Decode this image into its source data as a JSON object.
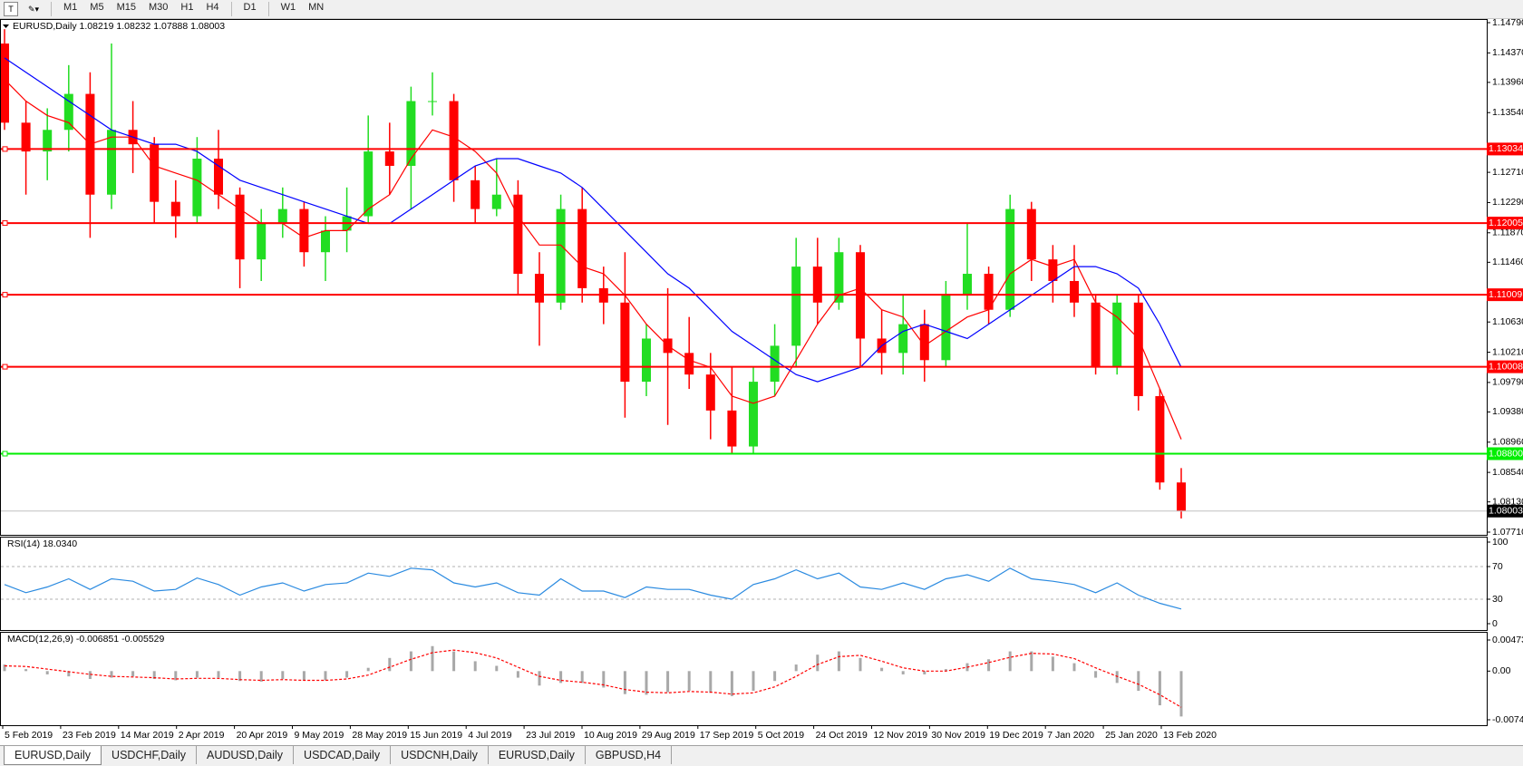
{
  "toolbar": {
    "timeframes": [
      "M1",
      "M5",
      "M15",
      "M30",
      "H1",
      "H4",
      "D1",
      "W1",
      "MN"
    ]
  },
  "chart_data": [
    {
      "type": "candlestick",
      "title": "EURUSD,Daily  1.08219 1.08232 1.07888 1.08003",
      "up_color": "#22dd22",
      "down_color": "#ff0000",
      "open": [
        1.145,
        1.134,
        1.13,
        1.133,
        1.138,
        1.124,
        1.133,
        1.131,
        1.123,
        1.121,
        1.129,
        1.124,
        1.115,
        1.12,
        1.122,
        1.116,
        1.119,
        1.121,
        1.13,
        1.128,
        1.137,
        1.137,
        1.126,
        1.122,
        1.124,
        1.113,
        1.109,
        1.122,
        1.111,
        1.109,
        1.098,
        1.104,
        1.102,
        1.099,
        1.094,
        1.089,
        1.098,
        1.103,
        1.114,
        1.109,
        1.116,
        1.104,
        1.102,
        1.106,
        1.101,
        1.11,
        1.113,
        1.108,
        1.122,
        1.115,
        1.112,
        1.109,
        1.1,
        1.109,
        1.096,
        1.084
      ],
      "high": [
        1.147,
        1.137,
        1.136,
        1.142,
        1.141,
        1.145,
        1.137,
        1.132,
        1.126,
        1.132,
        1.133,
        1.125,
        1.122,
        1.125,
        1.123,
        1.121,
        1.125,
        1.135,
        1.134,
        1.139,
        1.141,
        1.138,
        1.128,
        1.129,
        1.126,
        1.116,
        1.124,
        1.125,
        1.114,
        1.116,
        1.106,
        1.111,
        1.107,
        1.102,
        1.1,
        1.1,
        1.106,
        1.118,
        1.118,
        1.118,
        1.117,
        1.108,
        1.11,
        1.108,
        1.112,
        1.12,
        1.114,
        1.124,
        1.123,
        1.117,
        1.117,
        1.11,
        1.11,
        1.11,
        1.097,
        1.086
      ],
      "low": [
        1.133,
        1.124,
        1.126,
        1.13,
        1.118,
        1.122,
        1.127,
        1.12,
        1.118,
        1.12,
        1.122,
        1.111,
        1.112,
        1.118,
        1.114,
        1.112,
        1.116,
        1.12,
        1.124,
        1.122,
        1.135,
        1.123,
        1.12,
        1.121,
        1.11,
        1.103,
        1.108,
        1.109,
        1.106,
        1.093,
        1.096,
        1.092,
        1.097,
        1.09,
        1.088,
        1.088,
        1.096,
        1.1,
        1.106,
        1.108,
        1.1,
        1.099,
        1.099,
        1.098,
        1.1,
        1.108,
        1.106,
        1.107,
        1.112,
        1.109,
        1.107,
        1.099,
        1.099,
        1.094,
        1.083,
        1.079
      ],
      "close": [
        1.134,
        1.13,
        1.133,
        1.138,
        1.124,
        1.133,
        1.131,
        1.123,
        1.121,
        1.129,
        1.124,
        1.115,
        1.12,
        1.122,
        1.116,
        1.119,
        1.121,
        1.13,
        1.128,
        1.137,
        1.137,
        1.126,
        1.122,
        1.124,
        1.113,
        1.109,
        1.122,
        1.111,
        1.109,
        1.098,
        1.104,
        1.102,
        1.099,
        1.094,
        1.089,
        1.098,
        1.103,
        1.114,
        1.109,
        1.116,
        1.104,
        1.102,
        1.106,
        1.101,
        1.11,
        1.113,
        1.108,
        1.122,
        1.115,
        1.112,
        1.109,
        1.1,
        1.109,
        1.096,
        1.084,
        1.08
      ],
      "series": [
        {
          "color": "#ff0000",
          "values": [
            1.14,
            1.137,
            1.135,
            1.134,
            1.131,
            1.132,
            1.132,
            1.128,
            1.127,
            1.126,
            1.124,
            1.122,
            1.12,
            1.12,
            1.118,
            1.119,
            1.119,
            1.122,
            1.124,
            1.129,
            1.133,
            1.132,
            1.13,
            1.127,
            1.121,
            1.117,
            1.117,
            1.114,
            1.113,
            1.11,
            1.106,
            1.103,
            1.101,
            1.1,
            1.096,
            1.095,
            1.096,
            1.101,
            1.106,
            1.11,
            1.111,
            1.108,
            1.107,
            1.103,
            1.105,
            1.107,
            1.108,
            1.113,
            1.115,
            1.114,
            1.115,
            1.109,
            1.107,
            1.104,
            1.097,
            1.09
          ]
        },
        {
          "color": "#0000ff",
          "values": [
            1.143,
            1.141,
            1.139,
            1.137,
            1.135,
            1.133,
            1.132,
            1.131,
            1.131,
            1.13,
            1.128,
            1.126,
            1.125,
            1.124,
            1.123,
            1.122,
            1.121,
            1.12,
            1.12,
            1.122,
            1.124,
            1.126,
            1.128,
            1.129,
            1.129,
            1.128,
            1.127,
            1.125,
            1.122,
            1.119,
            1.116,
            1.113,
            1.111,
            1.108,
            1.105,
            1.103,
            1.101,
            1.099,
            1.098,
            1.099,
            1.1,
            1.103,
            1.105,
            1.106,
            1.105,
            1.104,
            1.106,
            1.108,
            1.11,
            1.112,
            1.114,
            1.114,
            1.113,
            1.111,
            1.106,
            1.1
          ]
        }
      ],
      "levels": [
        {
          "value": 1.13034,
          "color": "#ff0000"
        },
        {
          "value": 1.12005,
          "color": "#ff0000"
        },
        {
          "value": 1.11009,
          "color": "#ff0000"
        },
        {
          "value": 1.10008,
          "color": "#ff0000"
        },
        {
          "value": 1.088,
          "label": "1.08800",
          "color": "#00ee00"
        }
      ],
      "last": 1.08003,
      "ylim": [
        1.0771,
        1.1479
      ],
      "yticks": [
        {
          "value": 1.1479,
          "label": "1.14790"
        },
        {
          "value": 1.1437,
          "label": "1.14370"
        },
        {
          "value": 1.1396,
          "label": "1.13960"
        },
        {
          "value": 1.1354,
          "label": "1.13540"
        },
        {
          "value": 1.1271,
          "label": "1.12710"
        },
        {
          "value": 1.1229,
          "label": "1.12290"
        },
        {
          "value": 1.1187,
          "label": "1.11870"
        },
        {
          "value": 1.1146,
          "label": "1.11460"
        },
        {
          "value": 1.1063,
          "label": "1.10630"
        },
        {
          "value": 1.1021,
          "label": "1.10210"
        },
        {
          "value": 1.0979,
          "label": "1.09790"
        },
        {
          "value": 1.0938,
          "label": "1.09380"
        },
        {
          "value": 1.0896,
          "label": "1.08960"
        },
        {
          "value": 1.0854,
          "label": "1.08540"
        },
        {
          "value": 1.0813,
          "label": "1.08130"
        },
        {
          "value": 1.0771,
          "label": "1.07710"
        }
      ]
    },
    {
      "type": "line",
      "title": "RSI(14) 18.0340",
      "color": "#2a8ae0",
      "values": [
        48,
        38,
        45,
        55,
        42,
        55,
        52,
        40,
        42,
        56,
        48,
        35,
        45,
        50,
        40,
        48,
        50,
        62,
        58,
        68,
        66,
        50,
        45,
        50,
        38,
        35,
        55,
        40,
        40,
        32,
        45,
        42,
        42,
        35,
        30,
        48,
        55,
        66,
        55,
        62,
        45,
        42,
        50,
        42,
        55,
        60,
        52,
        68,
        55,
        52,
        48,
        38,
        50,
        35,
        25,
        18
      ],
      "ylim": [
        0,
        100
      ],
      "yticks": [
        0,
        30,
        70,
        100
      ]
    },
    {
      "type": "macd",
      "title": "MACD(12,26,9) -0.006851 -0.005529",
      "color": "#a8a8a8",
      "values": [
        0.001,
        0.0003,
        -0.0005,
        -0.0008,
        -0.0012,
        -0.001,
        -0.0008,
        -0.0012,
        -0.0014,
        -0.001,
        -0.001,
        -0.0015,
        -0.0016,
        -0.0012,
        -0.0014,
        -0.0014,
        -0.001,
        0.0005,
        0.002,
        0.003,
        0.0038,
        0.003,
        0.0015,
        0.0008,
        -0.001,
        -0.0022,
        -0.0018,
        -0.0018,
        -0.0025,
        -0.0035,
        -0.0036,
        -0.0032,
        -0.003,
        -0.0033,
        -0.0038,
        -0.003,
        -0.0015,
        0.001,
        0.0025,
        0.003,
        0.002,
        0.0005,
        -0.0005,
        -0.0005,
        0.0003,
        0.0012,
        0.0018,
        0.003,
        0.003,
        0.0022,
        0.0012,
        -0.001,
        -0.0018,
        -0.003,
        -0.0052,
        -0.0069
      ],
      "signal": {
        "color": "#ff0000",
        "values": [
          0.0008,
          0.0007,
          0.0003,
          -0.0001,
          -0.0005,
          -0.0008,
          -0.0009,
          -0.001,
          -0.0012,
          -0.0011,
          -0.0011,
          -0.0013,
          -0.0014,
          -0.0013,
          -0.0014,
          -0.0014,
          -0.0012,
          -0.0006,
          0.0006,
          0.0018,
          0.0028,
          0.0032,
          0.0028,
          0.002,
          0.0006,
          -0.0008,
          -0.0014,
          -0.0017,
          -0.0021,
          -0.0028,
          -0.0032,
          -0.0033,
          -0.0031,
          -0.0032,
          -0.0035,
          -0.0033,
          -0.0024,
          -0.0008,
          0.001,
          0.0022,
          0.0024,
          0.0015,
          0.0005,
          0,
          0,
          0.0006,
          0.0013,
          0.0021,
          0.0027,
          0.0026,
          0.0019,
          0.0005,
          -0.0008,
          -0.002,
          -0.0036,
          -0.0055
        ]
      },
      "ylim": [
        -0.0074,
        0.00473
      ],
      "yticks": [
        {
          "value": -0.0074,
          "label": "-0.00740"
        },
        {
          "value": 0,
          "label": "0.00"
        },
        0.00473
      ]
    }
  ],
  "time_axis": [
    "5 Feb 2019",
    "23 Feb 2019",
    "14 Mar 2019",
    "2 Apr 2019",
    "20 Apr 2019",
    "9 May 2019",
    "28 May 2019",
    "15 Jun 2019",
    "4 Jul 2019",
    "23 Jul 2019",
    "10 Aug 2019",
    "29 Aug 2019",
    "17 Sep 2019",
    "5 Oct 2019",
    "24 Oct 2019",
    "12 Nov 2019",
    "30 Nov 2019",
    "19 Dec 2019",
    "7 Jan 2020",
    "25 Jan 2020",
    "13 Feb 2020"
  ],
  "tabs": [
    "EURUSD,Daily",
    "USDCHF,Daily",
    "AUDUSD,Daily",
    "USDCAD,Daily",
    "USDCNH,Daily",
    "EURUSD,Daily",
    "GBPUSD,H4"
  ]
}
